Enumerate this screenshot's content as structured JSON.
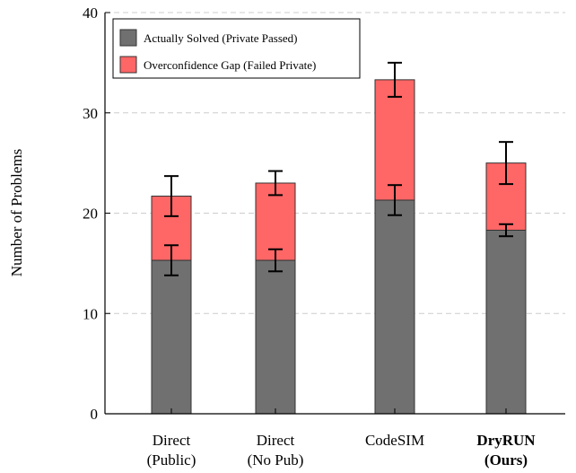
{
  "chart_data": {
    "type": "bar",
    "stacked": true,
    "categories": [
      {
        "lines": [
          "Direct",
          "(Public)"
        ],
        "bold": false
      },
      {
        "lines": [
          "Direct",
          "(No Pub)"
        ],
        "bold": false
      },
      {
        "lines": [
          "CodeSIM"
        ],
        "bold": false
      },
      {
        "lines": [
          "DryRUN",
          "(Ours)"
        ],
        "bold": true
      }
    ],
    "series": [
      {
        "name": "Actually Solved (Private Passed)",
        "color": "#707070",
        "values": [
          15.3,
          15.3,
          21.3,
          18.3
        ],
        "error": [
          1.5,
          1.1,
          1.5,
          0.6
        ]
      },
      {
        "name": "Overconfidence Gap (Failed Private)",
        "color": "#ff6666",
        "values": [
          6.4,
          7.7,
          12.0,
          6.7
        ],
        "error": [
          2.0,
          1.2,
          1.7,
          2.1
        ]
      }
    ],
    "title": "",
    "xlabel": "",
    "ylabel": "Number of Problems",
    "ylim": [
      0,
      40
    ],
    "yticks": [
      0,
      10,
      20,
      30,
      40
    ],
    "grid": "horizontal-dashed",
    "legend_position": "top-left"
  }
}
